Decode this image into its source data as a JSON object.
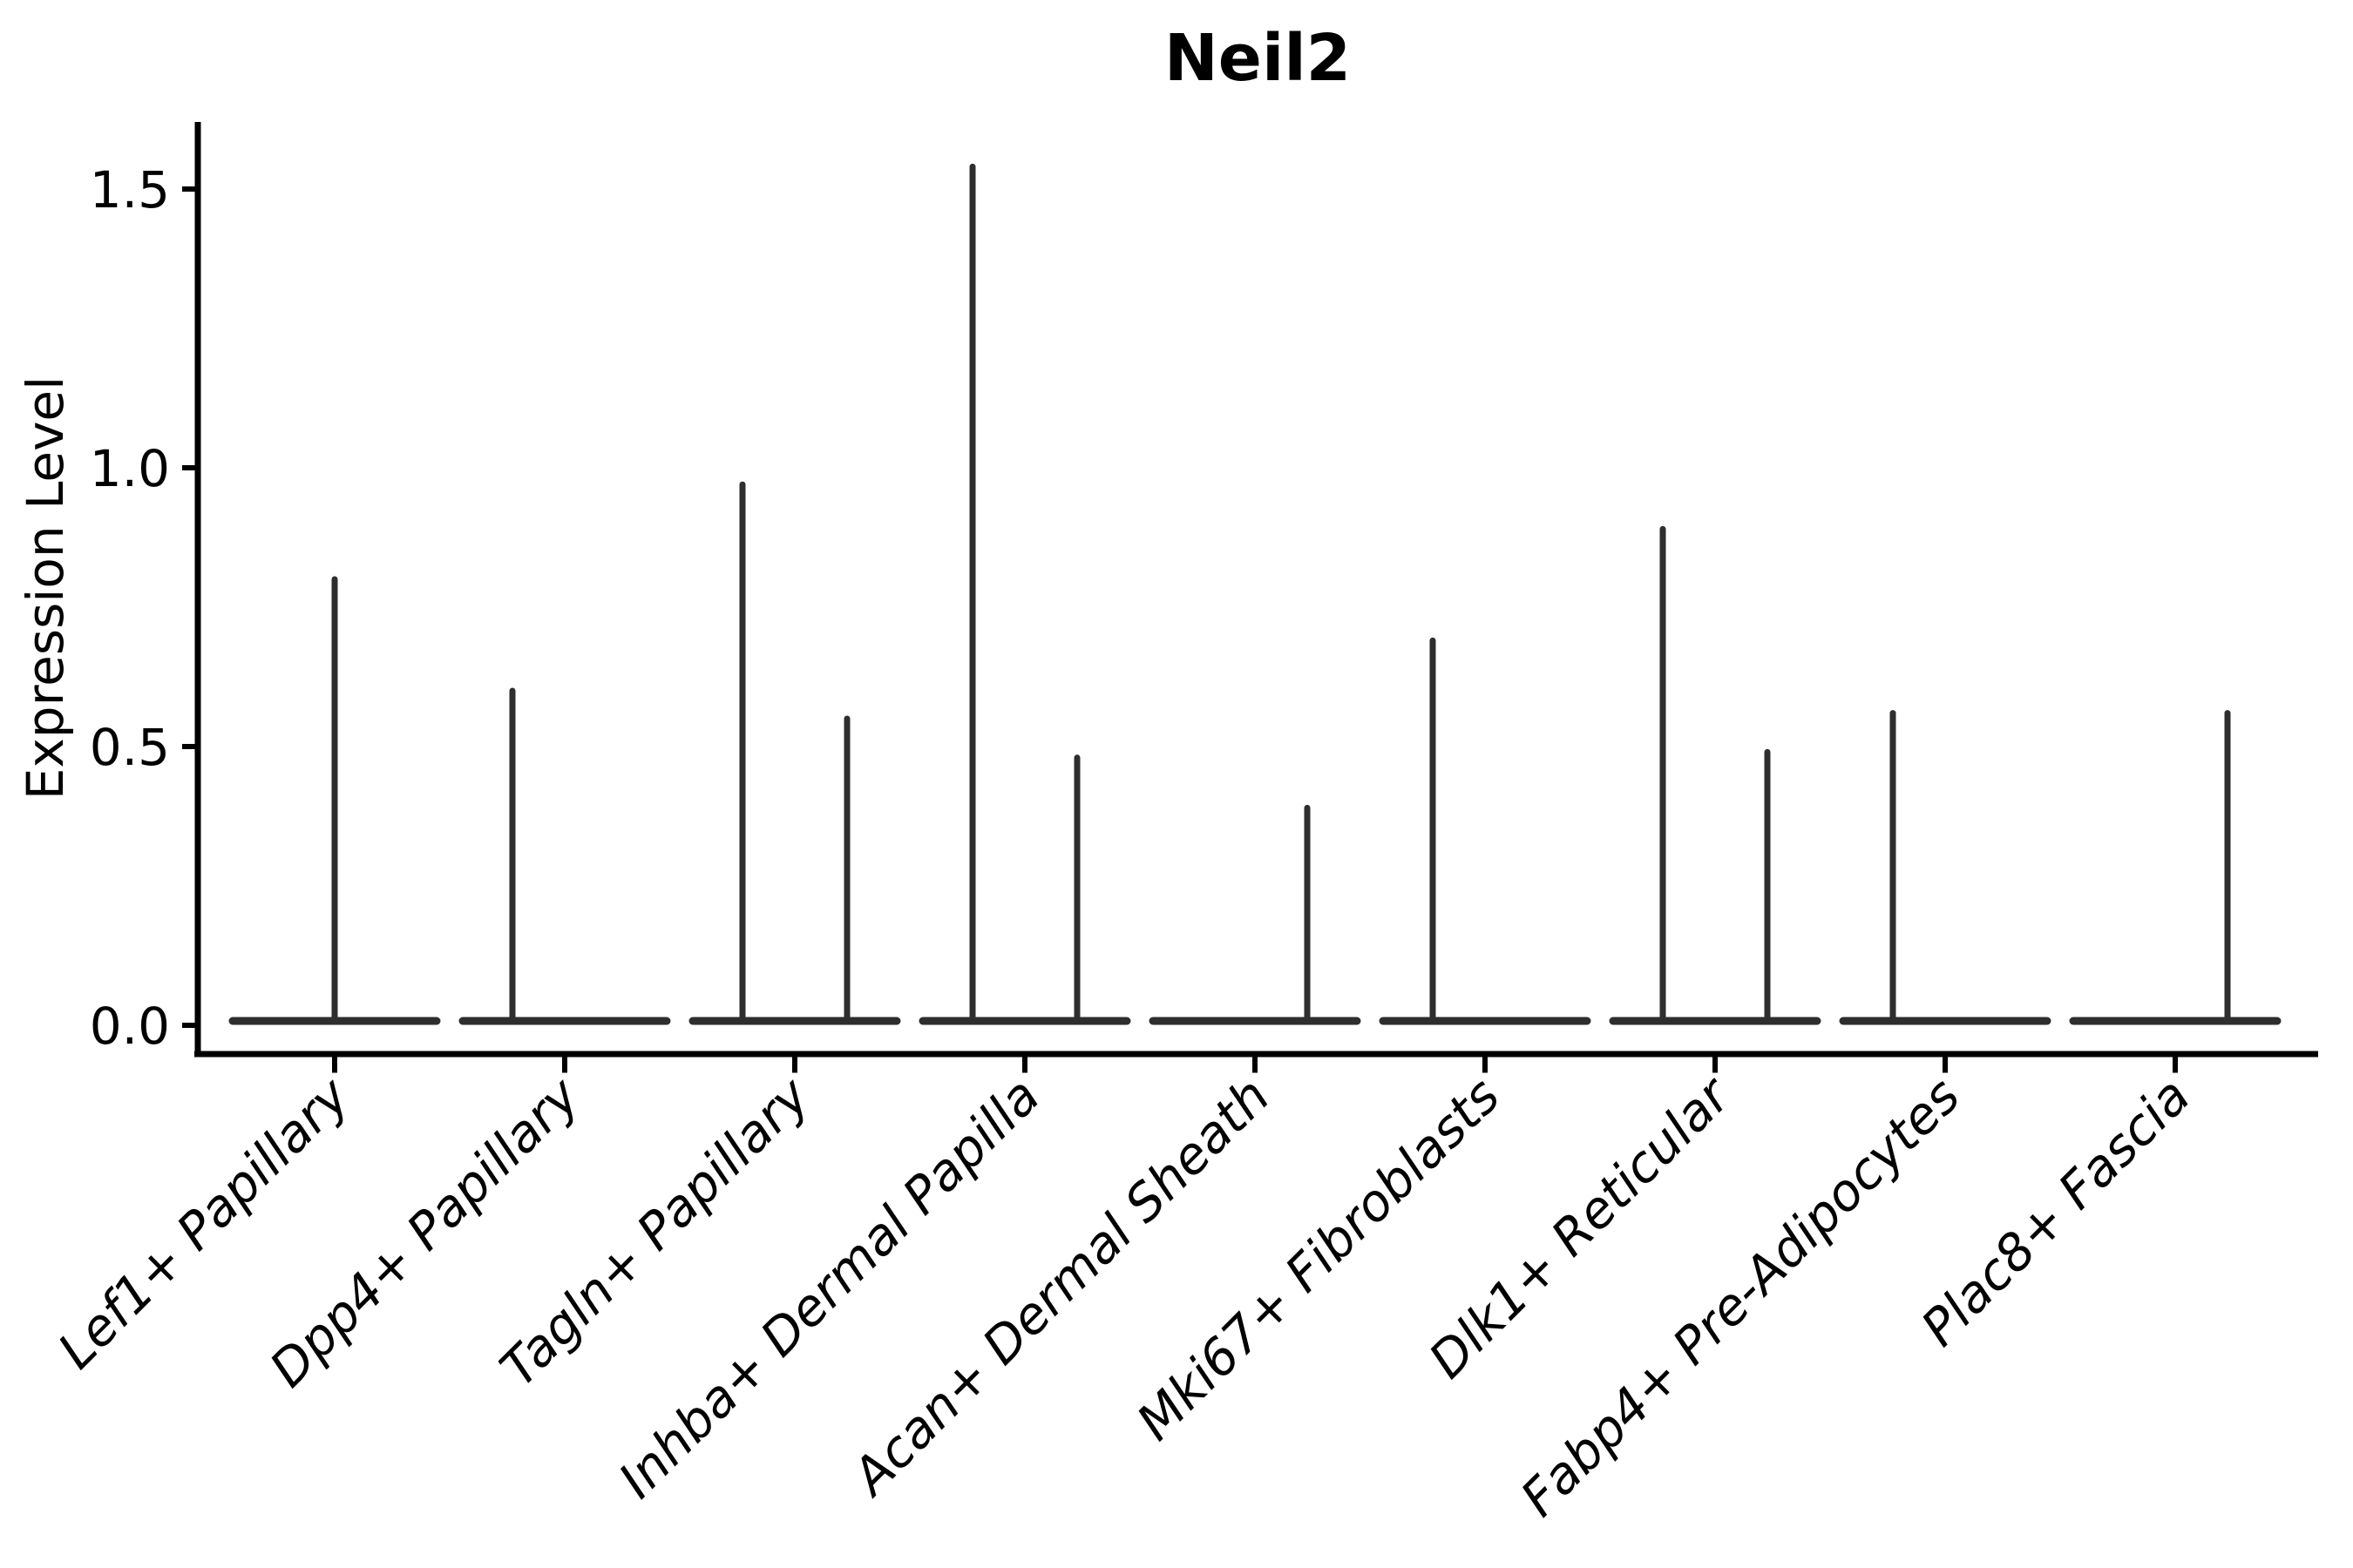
{
  "chart_data": {
    "type": "violin",
    "title": "Neil2",
    "ylabel": "Expression Level",
    "xlabel": "",
    "ylim": [
      0,
      1.62
    ],
    "grid": false,
    "legend": "none",
    "yticks": [
      {
        "label": "0.0",
        "value": 0.0
      },
      {
        "label": "0.5",
        "value": 0.5
      },
      {
        "label": "1.0",
        "value": 1.0
      },
      {
        "label": "1.5",
        "value": 1.5
      }
    ],
    "categories": [
      {
        "label": "Lef1+ Papillary",
        "violins": [
          {
            "position": "center",
            "peak": 0.8
          }
        ]
      },
      {
        "label": "Dpp4+ Papillary",
        "violins": [
          {
            "position": "left",
            "peak": 0.6
          },
          {
            "position": "right",
            "peak": 0
          }
        ]
      },
      {
        "label": "Tagln+ Papillary",
        "violins": [
          {
            "position": "left",
            "peak": 0.97
          },
          {
            "position": "right",
            "peak": 0.55
          }
        ]
      },
      {
        "label": "Inhba+ Dermal Papilla",
        "violins": [
          {
            "position": "left",
            "peak": 1.54
          },
          {
            "position": "right",
            "peak": 0.48
          }
        ]
      },
      {
        "label": "Acan+ Dermal Sheath",
        "violins": [
          {
            "position": "left",
            "peak": 0
          },
          {
            "position": "right",
            "peak": 0.39
          }
        ]
      },
      {
        "label": "Mki67+ Fibroblasts",
        "violins": [
          {
            "position": "left",
            "peak": 0.69
          },
          {
            "position": "right",
            "peak": 0
          }
        ]
      },
      {
        "label": "Dlk1+ Reticular",
        "violins": [
          {
            "position": "left",
            "peak": 0.89
          },
          {
            "position": "right",
            "peak": 0.49
          }
        ]
      },
      {
        "label": "Fabp4+ Pre-Adipocytes",
        "violins": [
          {
            "position": "left",
            "peak": 0.56
          },
          {
            "position": "right",
            "peak": 0
          }
        ]
      },
      {
        "label": "Plac8+ Fascia",
        "violins": [
          {
            "position": "left",
            "peak": 0
          },
          {
            "position": "right",
            "peak": 0.56
          }
        ]
      }
    ],
    "colors": {
      "violin": "#2e2e2e",
      "axis": "#000000",
      "text": "#000000",
      "background": "#ffffff"
    }
  }
}
